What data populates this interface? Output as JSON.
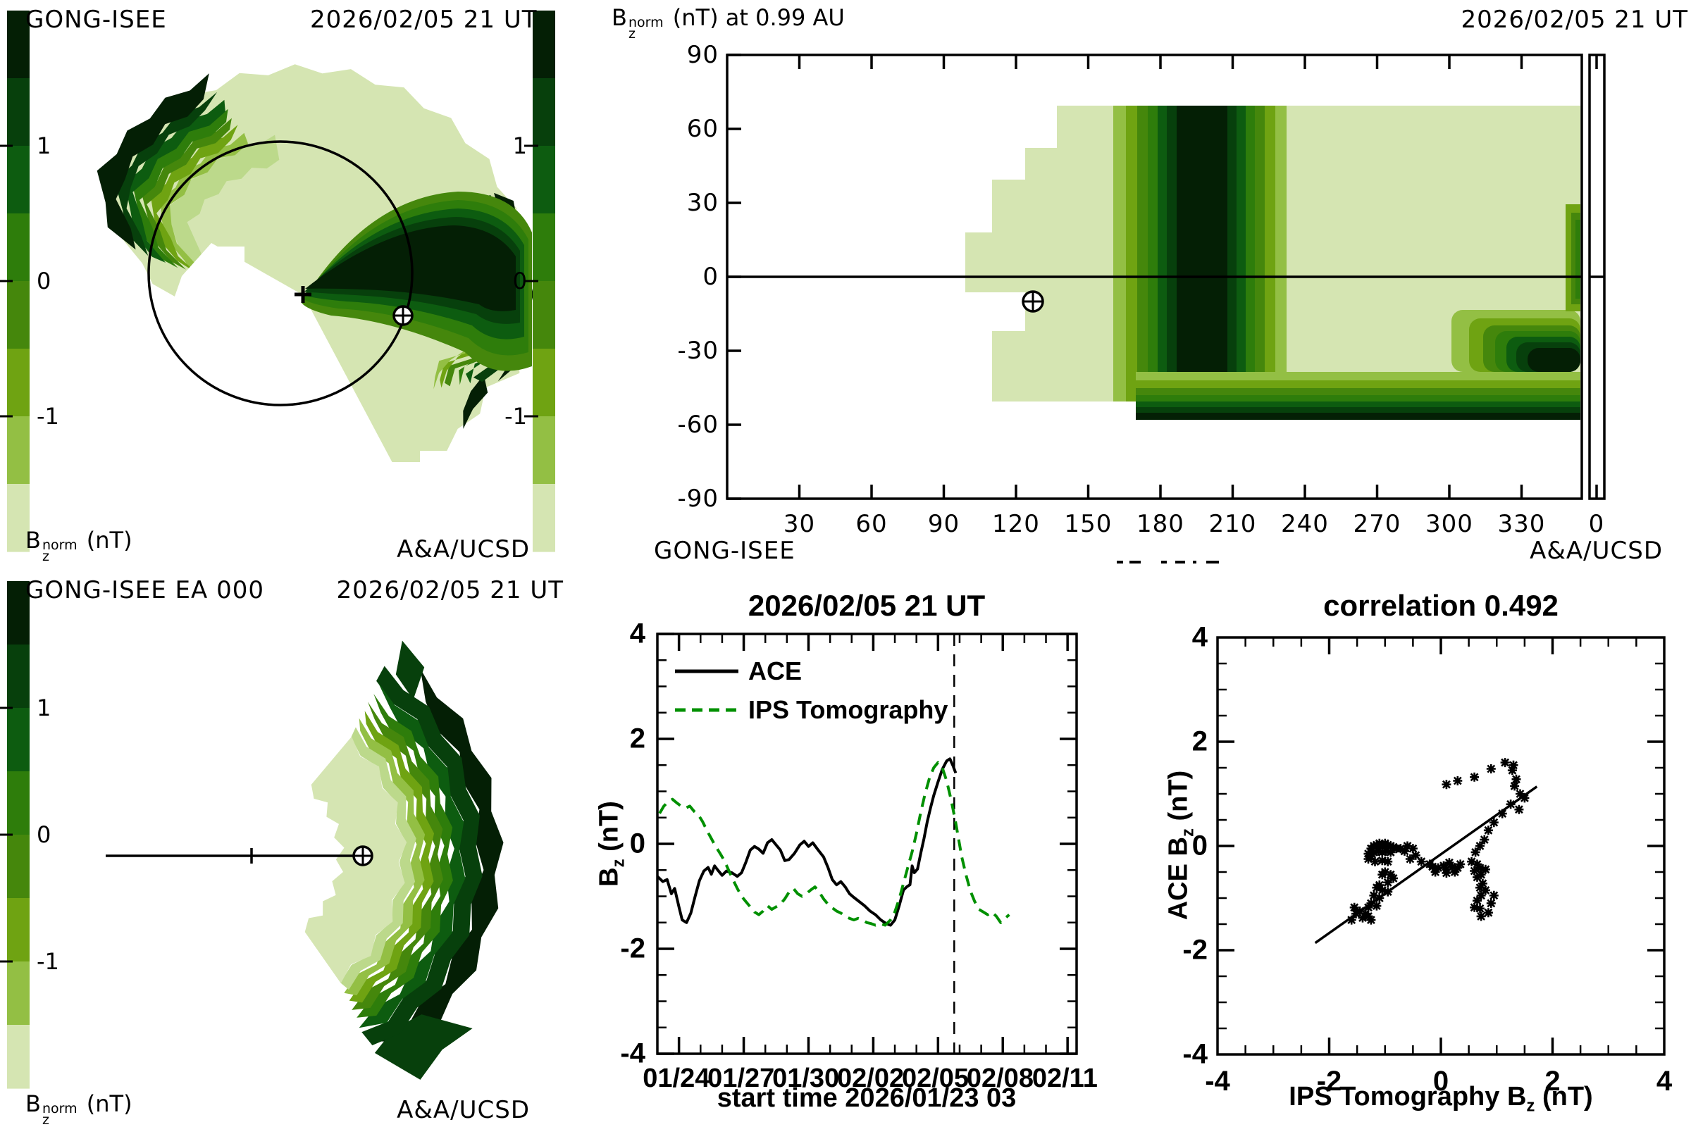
{
  "palette": [
    "#041f05",
    "#07400c",
    "#0d5c10",
    "#2e7d0b",
    "#45870c",
    "#6fa312",
    "#93bf44",
    "#d5e5b2"
  ],
  "palette_light_mid": "#bcd98b",
  "accent_green": "#009000",
  "labels": {
    "B": "B",
    "z": "z",
    "norm": "norm",
    "nT": "(nT)",
    "map_title_suffix": "(nT) at 0.99 AU"
  },
  "panel_fisheye": {
    "title": "GONG-ISEE",
    "datetime": "2026/02/05 21 UT",
    "credit": "A&A/UCSD",
    "colorbar_ticks": [
      "1",
      "0",
      "-1"
    ],
    "sun_marker": "+",
    "earth_marker": "earth-symbol"
  },
  "panel_map": {
    "datetime": "2026/02/05 21 UT",
    "source": "GONG-ISEE",
    "credit": "A&A/UCSD",
    "colorbar_ticks": [
      "1",
      "0",
      "-1"
    ],
    "lat_ticks": [
      "90",
      "60",
      "30",
      "0",
      "-30",
      "-60",
      "-90"
    ],
    "lon_ticks": [
      "30",
      "60",
      "90",
      "120",
      "150",
      "180",
      "210",
      "240",
      "270",
      "300",
      "330",
      "0"
    ]
  },
  "panel_fan": {
    "title": "GONG-ISEE EA 000",
    "datetime": "2026/02/05 21 UT",
    "credit": "A&A/UCSD",
    "colorbar_ticks": [
      "1",
      "0",
      "-1"
    ]
  },
  "panel_timeseries": {
    "title": "2026/02/05 21 UT",
    "xlabel": "start time 2026/01/23 03",
    "y_ticks": [
      "4",
      "2",
      "0",
      "-2",
      "-4"
    ],
    "x_ticks": [
      "01/24",
      "01/27",
      "01/30",
      "02/02",
      "02/05",
      "02/08",
      "02/11"
    ],
    "legend": [
      {
        "label": "ACE"
      },
      {
        "label": "IPS Tomography"
      }
    ]
  },
  "panel_scatter": {
    "title": "correlation 0.492",
    "xlabel_prefix": "IPS Tomography B",
    "ylabel_prefix": "ACE B",
    "unit": "(nT)",
    "x_ticks": [
      "-4",
      "-2",
      "0",
      "2",
      "4"
    ],
    "y_ticks": [
      "4",
      "2",
      "0",
      "-2",
      "-4"
    ]
  },
  "chart_data": [
    {
      "type": "line",
      "title": "2026/02/05 21 UT",
      "xlabel": "start time 2026/01/23 03",
      "ylabel": "Bz (nT)",
      "ylim": [
        -4,
        4
      ],
      "x_unit": "days since 2026/01/23 03 UT",
      "x_tick_labels": [
        "01/24",
        "01/27",
        "01/30",
        "02/02",
        "02/05",
        "02/08",
        "02/11"
      ],
      "x_tick_days": [
        0.875,
        3.875,
        6.875,
        9.875,
        12.875,
        15.875,
        18.875
      ],
      "x_range_days": [
        0,
        19.4
      ],
      "now_line_day": 13.75,
      "legend_position": "top-left",
      "series": [
        {
          "name": "ACE",
          "style": "solid",
          "color": "#000000",
          "points": [
            [
              0,
              -0.62
            ],
            [
              0.25,
              -0.72
            ],
            [
              0.45,
              -0.68
            ],
            [
              0.65,
              -0.95
            ],
            [
              0.8,
              -0.85
            ],
            [
              1,
              -1.2
            ],
            [
              1.15,
              -1.45
            ],
            [
              1.35,
              -1.5
            ],
            [
              1.55,
              -1.32
            ],
            [
              1.75,
              -1
            ],
            [
              1.95,
              -0.7
            ],
            [
              2.15,
              -0.52
            ],
            [
              2.35,
              -0.45
            ],
            [
              2.5,
              -0.58
            ],
            [
              2.65,
              -0.42
            ],
            [
              2.8,
              -0.5
            ],
            [
              3,
              -0.6
            ],
            [
              3.2,
              -0.52
            ],
            [
              3.45,
              -0.55
            ],
            [
              3.7,
              -0.62
            ],
            [
              3.9,
              -0.55
            ],
            [
              4.1,
              -0.35
            ],
            [
              4.3,
              -0.12
            ],
            [
              4.5,
              -0.05
            ],
            [
              4.7,
              -0.1
            ],
            [
              4.9,
              -0.18
            ],
            [
              5.1,
              0.02
            ],
            [
              5.3,
              0.08
            ],
            [
              5.5,
              -0.02
            ],
            [
              5.7,
              -0.12
            ],
            [
              5.9,
              -0.32
            ],
            [
              6.1,
              -0.3
            ],
            [
              6.35,
              -0.18
            ],
            [
              6.6,
              -0.02
            ],
            [
              6.8,
              0.05
            ],
            [
              7,
              -0.05
            ],
            [
              7.2,
              0.02
            ],
            [
              7.45,
              -0.12
            ],
            [
              7.7,
              -0.25
            ],
            [
              7.9,
              -0.45
            ],
            [
              8.1,
              -0.68
            ],
            [
              8.3,
              -0.78
            ],
            [
              8.5,
              -0.72
            ],
            [
              8.7,
              -0.82
            ],
            [
              8.9,
              -0.95
            ],
            [
              9.1,
              -1.02
            ],
            [
              9.35,
              -1.1
            ],
            [
              9.6,
              -1.18
            ],
            [
              9.85,
              -1.28
            ],
            [
              10.1,
              -1.35
            ],
            [
              10.35,
              -1.45
            ],
            [
              10.6,
              -1.52
            ],
            [
              10.8,
              -1.55
            ],
            [
              11,
              -1.45
            ],
            [
              11.2,
              -1.18
            ],
            [
              11.4,
              -0.88
            ],
            [
              11.55,
              -0.82
            ],
            [
              11.7,
              -0.78
            ],
            [
              11.8,
              -0.42
            ],
            [
              11.9,
              -0.55
            ],
            [
              12.05,
              -0.48
            ],
            [
              12.2,
              -0.18
            ],
            [
              12.35,
              0.1
            ],
            [
              12.5,
              0.42
            ],
            [
              12.65,
              0.68
            ],
            [
              12.8,
              0.92
            ],
            [
              13,
              1.18
            ],
            [
              13.2,
              1.42
            ],
            [
              13.4,
              1.58
            ],
            [
              13.55,
              1.62
            ],
            [
              13.7,
              1.48
            ],
            [
              13.82,
              1.35
            ]
          ]
        },
        {
          "name": "IPS Tomography",
          "style": "dashed",
          "color": "#009000",
          "points": [
            [
              0.1,
              0.58
            ],
            [
              0.3,
              0.72
            ],
            [
              0.5,
              0.8
            ],
            [
              0.7,
              0.85
            ],
            [
              0.9,
              0.78
            ],
            [
              1.1,
              0.72
            ],
            [
              1.3,
              0.68
            ],
            [
              1.5,
              0.72
            ],
            [
              1.7,
              0.62
            ],
            [
              1.9,
              0.55
            ],
            [
              2.1,
              0.42
            ],
            [
              2.3,
              0.25
            ],
            [
              2.5,
              0.1
            ],
            [
              2.7,
              -0.05
            ],
            [
              2.9,
              -0.18
            ],
            [
              3.1,
              -0.32
            ],
            [
              3.3,
              -0.5
            ],
            [
              3.5,
              -0.68
            ],
            [
              3.7,
              -0.85
            ],
            [
              3.9,
              -1
            ],
            [
              4.1,
              -1.1
            ],
            [
              4.3,
              -1.2
            ],
            [
              4.5,
              -1.3
            ],
            [
              4.7,
              -1.35
            ],
            [
              4.9,
              -1.28
            ],
            [
              5.1,
              -1.18
            ],
            [
              5.3,
              -1.25
            ],
            [
              5.5,
              -1.2
            ],
            [
              5.7,
              -1.15
            ],
            [
              5.9,
              -1.05
            ],
            [
              6.1,
              -0.92
            ],
            [
              6.3,
              -0.85
            ],
            [
              6.5,
              -0.95
            ],
            [
              6.7,
              -1
            ],
            [
              6.9,
              -0.95
            ],
            [
              7.1,
              -0.88
            ],
            [
              7.3,
              -0.82
            ],
            [
              7.5,
              -0.92
            ],
            [
              7.7,
              -1.05
            ],
            [
              7.9,
              -1.15
            ],
            [
              8.1,
              -1.22
            ],
            [
              8.3,
              -1.28
            ],
            [
              8.5,
              -1.32
            ],
            [
              8.7,
              -1.38
            ],
            [
              8.9,
              -1.42
            ],
            [
              9.1,
              -1.45
            ],
            [
              9.3,
              -1.42
            ],
            [
              9.5,
              -1.45
            ],
            [
              9.7,
              -1.5
            ],
            [
              9.9,
              -1.52
            ],
            [
              10.1,
              -1.55
            ],
            [
              10.3,
              -1.52
            ],
            [
              10.55,
              -1.55
            ],
            [
              10.8,
              -1.45
            ],
            [
              11,
              -1.3
            ],
            [
              11.2,
              -1.05
            ],
            [
              11.4,
              -0.75
            ],
            [
              11.6,
              -0.45
            ],
            [
              11.8,
              -0.15
            ],
            [
              12,
              0.2
            ],
            [
              12.2,
              0.6
            ],
            [
              12.4,
              0.95
            ],
            [
              12.6,
              1.25
            ],
            [
              12.8,
              1.45
            ],
            [
              13,
              1.55
            ],
            [
              13.2,
              1.45
            ],
            [
              13.4,
              1.2
            ],
            [
              13.6,
              0.85
            ],
            [
              13.8,
              0.45
            ],
            [
              13.95,
              0.1
            ],
            [
              14.1,
              -0.25
            ],
            [
              14.3,
              -0.6
            ],
            [
              14.5,
              -0.9
            ],
            [
              14.7,
              -1.1
            ],
            [
              14.9,
              -1.25
            ],
            [
              15.1,
              -1.3
            ],
            [
              15.3,
              -1.35
            ],
            [
              15.5,
              -1.3
            ],
            [
              15.7,
              -1.38
            ],
            [
              15.9,
              -1.5
            ],
            [
              16.1,
              -1.42
            ],
            [
              16.3,
              -1.35
            ]
          ]
        }
      ]
    },
    {
      "type": "scatter",
      "title": "correlation 0.492",
      "correlation": 0.492,
      "xlabel": "IPS Tomography Bz (nT)",
      "ylabel": "ACE Bz (nT)",
      "xlim": [
        -4,
        4
      ],
      "ylim": [
        -4,
        4
      ],
      "fit_line": [
        [
          -2.25,
          -1.86
        ],
        [
          1.72,
          1.14
        ]
      ],
      "points": [
        [
          -1.25,
          -0.05
        ],
        [
          -1.2,
          0
        ],
        [
          -1.15,
          0.02
        ],
        [
          -1.1,
          0.05
        ],
        [
          -1.05,
          0
        ],
        [
          -1,
          0.05
        ],
        [
          -0.95,
          0.02
        ],
        [
          -0.9,
          0
        ],
        [
          -0.85,
          -0.02
        ],
        [
          -0.8,
          -0.05
        ],
        [
          -1.3,
          -0.15
        ],
        [
          -1.25,
          -0.2
        ],
        [
          -1.2,
          -0.12
        ],
        [
          -1.12,
          -0.1
        ],
        [
          -1.05,
          -0.12
        ],
        [
          -0.98,
          -0.1
        ],
        [
          -0.9,
          -0.12
        ],
        [
          -1.3,
          -0.25
        ],
        [
          -1.18,
          -0.3
        ],
        [
          -1.05,
          -0.28
        ],
        [
          -0.95,
          -0.3
        ],
        [
          -0.72,
          -0.05
        ],
        [
          -0.65,
          -0.1
        ],
        [
          -0.6,
          0
        ],
        [
          -0.55,
          -0.25
        ],
        [
          -0.5,
          -0.05
        ],
        [
          -0.45,
          -0.18
        ],
        [
          -0.35,
          -0.3
        ],
        [
          -1,
          -0.5
        ],
        [
          -1.05,
          -0.55
        ],
        [
          -0.9,
          -0.55
        ],
        [
          -0.85,
          -0.62
        ],
        [
          -0.95,
          -0.7
        ],
        [
          -1.1,
          -0.75
        ],
        [
          -1.15,
          -0.8
        ],
        [
          -1.05,
          -0.85
        ],
        [
          -0.95,
          -0.88
        ],
        [
          -1.2,
          -0.95
        ],
        [
          -1.1,
          -1
        ],
        [
          -1.25,
          -1.1
        ],
        [
          -1.3,
          -1.18
        ],
        [
          -1.15,
          -1.15
        ],
        [
          -1.35,
          -1.3
        ],
        [
          -1.3,
          -1.35
        ],
        [
          -1.25,
          -1.42
        ],
        [
          -1.4,
          -1.38
        ],
        [
          -1.52,
          -1.3
        ],
        [
          -1.55,
          -1.18
        ],
        [
          -1.45,
          -1.25
        ],
        [
          -1.6,
          -1.42
        ],
        [
          -0.2,
          -0.35
        ],
        [
          -0.15,
          -0.4
        ],
        [
          -0.05,
          -0.42
        ],
        [
          0.05,
          -0.38
        ],
        [
          0.1,
          -0.45
        ],
        [
          0.2,
          -0.4
        ],
        [
          0.15,
          -0.32
        ],
        [
          0.3,
          -0.42
        ],
        [
          0.25,
          -0.5
        ],
        [
          0.1,
          -0.52
        ],
        [
          -0.1,
          -0.5
        ],
        [
          0.35,
          -0.35
        ],
        [
          0.55,
          -0.3
        ],
        [
          0.65,
          -0.35
        ],
        [
          0.7,
          -0.42
        ],
        [
          0.6,
          -0.48
        ],
        [
          0.72,
          -0.55
        ],
        [
          0.8,
          -0.45
        ],
        [
          0.65,
          -0.6
        ],
        [
          0.75,
          -0.72
        ],
        [
          0.7,
          -0.8
        ],
        [
          0.8,
          -0.85
        ],
        [
          0.72,
          -0.95
        ],
        [
          0.65,
          -1.05
        ],
        [
          0.7,
          -1.2
        ],
        [
          0.6,
          -1.18
        ],
        [
          0.72,
          -1.35
        ],
        [
          0.85,
          -1.28
        ],
        [
          0.9,
          -1.1
        ],
        [
          0.95,
          -0.95
        ],
        [
          0.1,
          1.18
        ],
        [
          0.3,
          1.25
        ],
        [
          0.6,
          1.32
        ],
        [
          0.9,
          1.48
        ],
        [
          1.15,
          1.6
        ],
        [
          1.3,
          1.55
        ],
        [
          1.28,
          1.45
        ],
        [
          1.35,
          1.28
        ],
        [
          1.32,
          1.15
        ],
        [
          1.42,
          1
        ],
        [
          1.5,
          0.92
        ],
        [
          1.25,
          0.8
        ],
        [
          1.4,
          0.7
        ],
        [
          1.1,
          0.62
        ],
        [
          0.95,
          0.45
        ],
        [
          0.85,
          0.3
        ],
        [
          0.78,
          0.12
        ],
        [
          0.7,
          0
        ],
        [
          0.62,
          -0.12
        ]
      ]
    },
    {
      "type": "heatmap",
      "value_label": "Bz norm (nT) at 0.99 AU",
      "colorbar_tick_values": [
        1,
        0,
        -1
      ],
      "lon_tick_values": [
        30,
        60,
        90,
        120,
        150,
        180,
        210,
        240,
        270,
        300,
        330,
        0
      ],
      "lat_tick_values": [
        90,
        60,
        30,
        0,
        -30,
        -60,
        -90
      ],
      "earth_marker": {
        "lon": 127,
        "lat": -10
      },
      "legend_position": "left-colorbar"
    }
  ]
}
